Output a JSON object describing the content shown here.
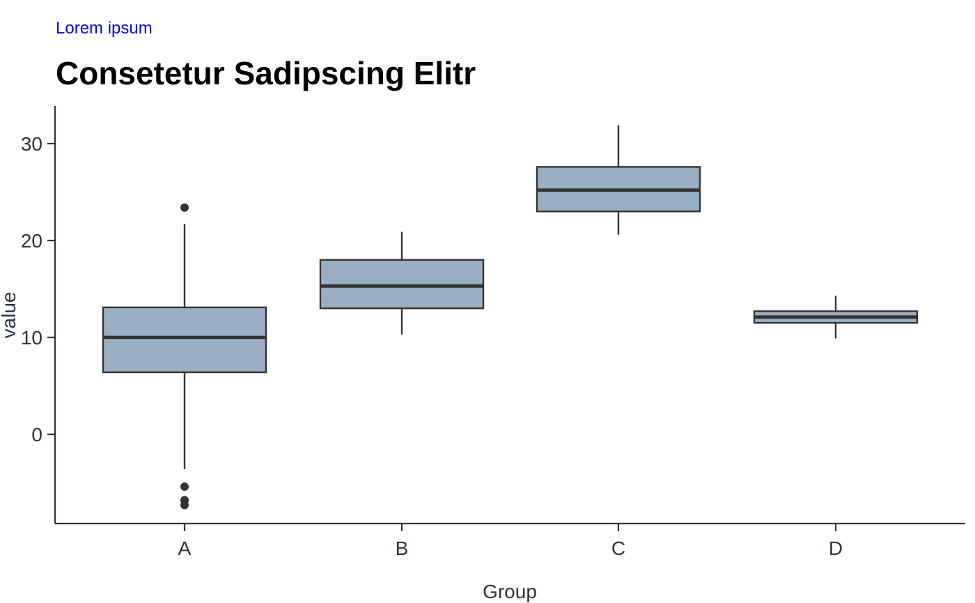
{
  "header": {
    "subtitle": "Lorem ipsum",
    "title": "Consetetur Sadipscing Elitr"
  },
  "chart_data": {
    "type": "boxplot",
    "title": "Consetetur Sadipscing Elitr",
    "subtitle": "Lorem ipsum",
    "xlabel": "Group",
    "ylabel": "value",
    "categories": [
      "A",
      "B",
      "C",
      "D"
    ],
    "yticks": [
      0,
      10,
      20,
      30
    ],
    "ylim": [
      -9.2,
      33.9
    ],
    "grid": false,
    "legend": "none",
    "box_fill": "#9aaec4",
    "box_stroke": "#333333",
    "axis_color": "#2b3440",
    "boxes": [
      {
        "group": "A",
        "whisker_low": -3.6,
        "q1": 6.4,
        "median": 10.0,
        "q3": 13.1,
        "whisker_high": 21.7,
        "outliers": [
          23.4,
          -5.4,
          -6.8,
          -7.3
        ]
      },
      {
        "group": "B",
        "whisker_low": 10.3,
        "q1": 13.0,
        "median": 15.3,
        "q3": 18.0,
        "whisker_high": 20.9,
        "outliers": []
      },
      {
        "group": "C",
        "whisker_low": 20.6,
        "q1": 23.0,
        "median": 25.2,
        "q3": 27.6,
        "whisker_high": 31.9,
        "outliers": []
      },
      {
        "group": "D",
        "whisker_low": 9.9,
        "q1": 11.5,
        "median": 12.1,
        "q3": 12.7,
        "whisker_high": 14.3,
        "outliers": []
      }
    ]
  }
}
